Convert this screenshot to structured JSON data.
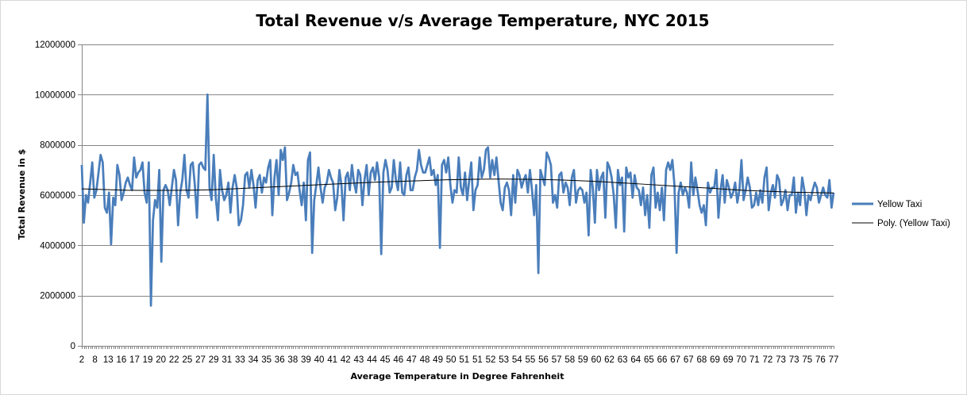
{
  "chart_data": {
    "type": "line",
    "title": "Total Revenue v/s Average Temperature, NYC 2015",
    "xlabel": "Average Temperature in Degree Fahrenheit",
    "ylabel": "Total Revenue in $",
    "ylim": [
      0,
      12000000
    ],
    "yticks": [
      0,
      2000000,
      4000000,
      6000000,
      8000000,
      10000000,
      12000000
    ],
    "ytick_labels": [
      "0",
      "2000000",
      "4000000",
      "6000000",
      "8000000",
      "10000000",
      "12000000"
    ],
    "xtick_labels": [
      "2",
      "8",
      "13",
      "16",
      "17",
      "19",
      "20",
      "22",
      "25",
      "27",
      "29",
      "31",
      "33",
      "34",
      "35",
      "36",
      "38",
      "39",
      "40",
      "41",
      "42",
      "43",
      "44",
      "45",
      "46",
      "47",
      "48",
      "49",
      "50",
      "51",
      "51",
      "52",
      "53",
      "54",
      "55",
      "56",
      "57",
      "58",
      "59",
      "60",
      "62",
      "63",
      "64",
      "65",
      "66",
      "67",
      "67",
      "68",
      "69",
      "69",
      "70",
      "71",
      "72",
      "73",
      "73",
      "75",
      "76",
      "77"
    ],
    "grid": "horizontal",
    "legend_position": "right",
    "series": [
      {
        "name": "Yellow Taxi",
        "color": "#4a7ebb",
        "values": [
          7200000,
          4900000,
          6000000,
          5700000,
          6500000,
          7300000,
          5900000,
          6200000,
          6900000,
          7600000,
          7300000,
          5500000,
          5300000,
          6100000,
          4050000,
          5900000,
          5600000,
          7200000,
          6800000,
          5800000,
          6100000,
          6500000,
          6700000,
          6400000,
          6200000,
          7500000,
          6700000,
          6900000,
          7000000,
          7300000,
          6100000,
          5700000,
          7300000,
          1600000,
          5000000,
          5800000,
          5500000,
          7000000,
          3350000,
          6200000,
          6400000,
          6200000,
          5600000,
          6300000,
          7000000,
          6600000,
          4800000,
          6100000,
          6600000,
          7600000,
          6200000,
          5900000,
          7200000,
          7300000,
          6400000,
          5100000,
          7200000,
          7300000,
          7100000,
          7000000,
          10000000,
          6300000,
          5800000,
          7600000,
          5900000,
          5000000,
          7000000,
          6200000,
          5800000,
          6000000,
          6500000,
          5300000,
          6300000,
          6800000,
          6300000,
          4800000,
          5000000,
          5600000,
          6800000,
          6900000,
          6300000,
          7000000,
          6400000,
          5500000,
          6600000,
          6800000,
          6100000,
          6700000,
          6500000,
          7100000,
          7400000,
          5200000,
          6700000,
          7400000,
          6000000,
          7800000,
          7400000,
          7900000,
          5800000,
          6100000,
          6500000,
          7200000,
          6800000,
          6900000,
          6200000,
          5600000,
          6500000,
          5000000,
          7400000,
          7700000,
          3700000,
          5800000,
          6400000,
          7100000,
          6300000,
          5700000,
          6300000,
          6500000,
          7000000,
          6700000,
          6500000,
          5400000,
          5900000,
          7000000,
          6400000,
          5000000,
          6700000,
          6900000,
          6200000,
          7200000,
          6500000,
          6100000,
          7000000,
          6800000,
          5600000,
          6600000,
          7200000,
          6000000,
          6900000,
          7100000,
          6600000,
          7300000,
          6700000,
          3650000,
          6900000,
          7400000,
          7000000,
          6100000,
          6300000,
          7400000,
          6600000,
          6200000,
          7300000,
          6100000,
          6000000,
          6800000,
          7100000,
          6200000,
          6200000,
          6700000,
          7000000,
          7800000,
          7200000,
          6900000,
          6900000,
          7200000,
          7500000,
          6800000,
          7000000,
          6400000,
          6800000,
          3900000,
          7200000,
          7400000,
          6900000,
          7500000,
          6400000,
          5700000,
          6200000,
          6100000,
          7500000,
          6300000,
          6000000,
          6900000,
          5800000,
          6600000,
          7300000,
          5400000,
          6200000,
          6400000,
          7500000,
          6700000,
          7000000,
          7800000,
          7900000,
          6700000,
          7400000,
          6800000,
          7500000,
          6600000,
          5700000,
          5400000,
          6300000,
          6500000,
          6200000,
          5200000,
          6800000,
          5700000,
          7000000,
          6800000,
          6300000,
          6600000,
          6800000,
          6100000,
          7000000,
          6200000,
          5200000,
          6400000,
          2900000,
          7000000,
          6700000,
          6400000,
          7700000,
          7500000,
          7200000,
          5700000,
          6000000,
          5500000,
          6800000,
          6900000,
          6100000,
          6500000,
          6300000,
          5600000,
          6700000,
          7000000,
          5700000,
          6200000,
          6300000,
          6200000,
          5700000,
          6100000,
          4400000,
          7000000,
          6300000,
          4900000,
          7000000,
          6200000,
          6700000,
          6900000,
          5100000,
          7300000,
          7100000,
          6700000,
          6000000,
          4700000,
          7000000,
          6400000,
          6700000,
          4550000,
          7100000,
          6700000,
          6900000,
          5900000,
          6800000,
          6300000,
          6200000,
          5600000,
          6300000,
          5200000,
          6000000,
          4700000,
          6800000,
          7100000,
          5500000,
          6100000,
          5400000,
          6300000,
          5000000,
          7000000,
          7300000,
          7000000,
          7400000,
          6400000,
          3700000,
          6100000,
          6500000,
          6000000,
          6300000,
          6100000,
          5500000,
          7300000,
          6000000,
          6700000,
          6200000,
          5600000,
          5300000,
          5600000,
          4800000,
          6500000,
          6100000,
          6300000,
          6300000,
          7000000,
          5100000,
          6200000,
          6800000,
          5700000,
          6600000,
          6300000,
          5900000,
          6100000,
          6500000,
          5700000,
          6200000,
          7400000,
          5800000,
          6200000,
          6700000,
          6300000,
          5500000,
          5600000,
          6100000,
          5600000,
          6200000,
          5700000,
          6700000,
          7100000,
          5400000,
          6100000,
          6400000,
          5900000,
          6800000,
          6600000,
          5600000,
          5800000,
          6200000,
          5400000,
          6000000,
          6000000,
          6700000,
          5300000,
          6100000,
          5600000,
          6700000,
          6200000,
          5200000,
          6000000,
          5800000,
          6200000,
          6500000,
          6300000,
          5700000,
          6000000,
          6300000,
          6000000,
          5900000,
          6600000,
          5500000,
          6100000
        ]
      },
      {
        "name": "Poly. (Yellow Taxi)",
        "color": "#000000",
        "kind": "trendline",
        "values": [
          6250000,
          6200000,
          6190000,
          6210000,
          6280000,
          6360000,
          6440000,
          6510000,
          6570000,
          6620000,
          6640000,
          6620000,
          6570000,
          6480000,
          6380000,
          6280000,
          6180000,
          6120000,
          6090000
        ]
      }
    ]
  }
}
